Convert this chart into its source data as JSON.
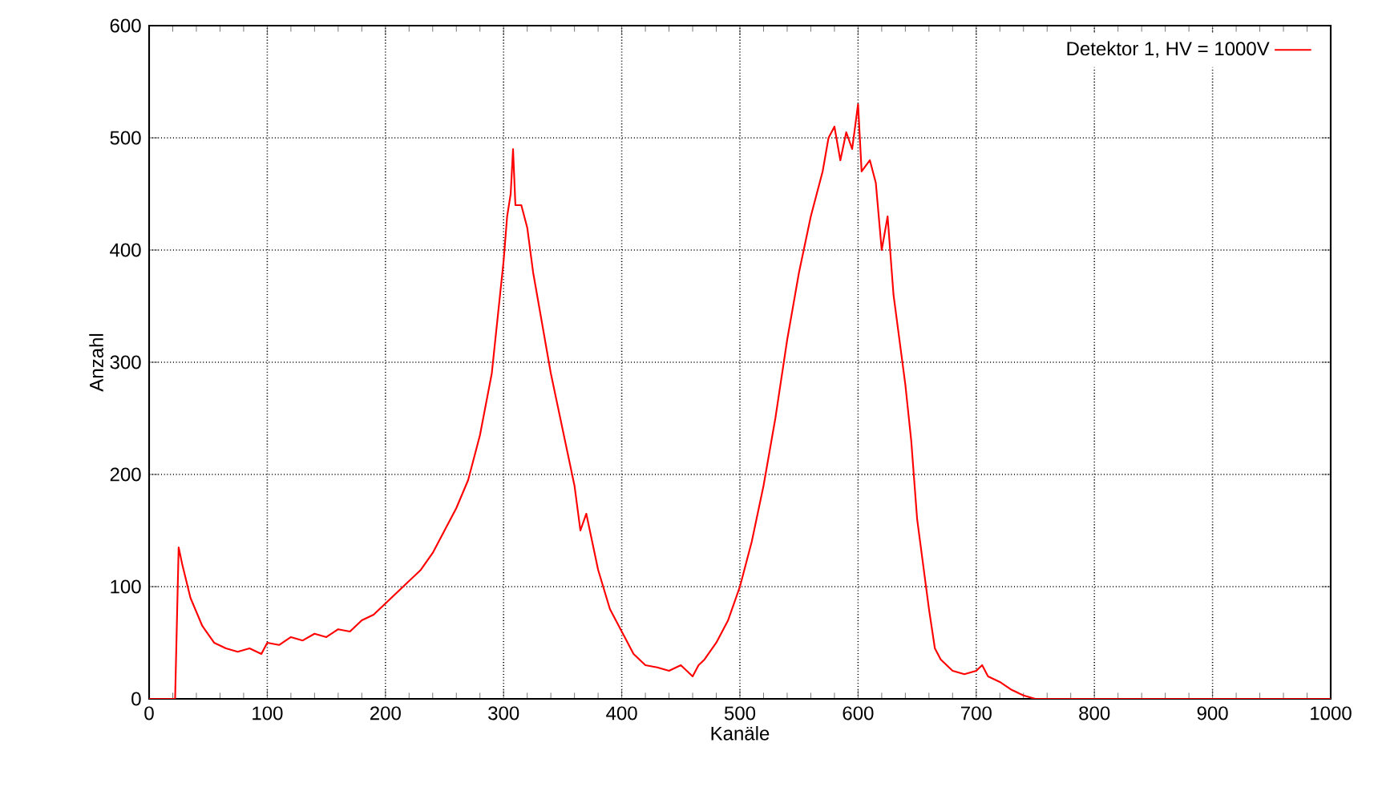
{
  "chart_data": {
    "type": "line",
    "xlabel": "Kanäle",
    "ylabel": "Anzahl",
    "xlim": [
      0,
      1000
    ],
    "ylim": [
      0,
      600
    ],
    "xticks": [
      0,
      100,
      200,
      300,
      400,
      500,
      600,
      700,
      800,
      900,
      1000
    ],
    "yticks": [
      0,
      100,
      200,
      300,
      400,
      500,
      600
    ],
    "grid": true,
    "legend": "top right",
    "marker": "none",
    "line_style": "solid",
    "series": [
      {
        "name": "Detektor 1, HV = 1000V",
        "color": "#ff0000",
        "x": [
          0,
          20,
          22,
          25,
          28,
          35,
          45,
          55,
          65,
          75,
          85,
          95,
          100,
          110,
          120,
          130,
          140,
          150,
          160,
          170,
          180,
          190,
          200,
          210,
          220,
          230,
          240,
          250,
          260,
          270,
          280,
          290,
          295,
          300,
          303,
          306,
          308,
          310,
          315,
          320,
          325,
          330,
          340,
          350,
          360,
          365,
          370,
          380,
          390,
          400,
          410,
          420,
          430,
          440,
          450,
          460,
          465,
          470,
          480,
          490,
          500,
          510,
          520,
          530,
          540,
          550,
          560,
          570,
          575,
          580,
          585,
          590,
          595,
          600,
          603,
          610,
          615,
          620,
          625,
          630,
          640,
          645,
          650,
          660,
          665,
          670,
          680,
          690,
          700,
          705,
          710,
          720,
          730,
          740,
          750,
          800,
          900,
          1000
        ],
        "values": [
          0,
          0,
          0,
          135,
          120,
          90,
          65,
          50,
          45,
          42,
          45,
          40,
          50,
          48,
          55,
          52,
          58,
          55,
          62,
          60,
          70,
          75,
          85,
          95,
          105,
          115,
          130,
          150,
          170,
          195,
          235,
          290,
          340,
          390,
          430,
          450,
          490,
          440,
          440,
          420,
          380,
          350,
          290,
          240,
          190,
          150,
          165,
          115,
          80,
          60,
          40,
          30,
          28,
          25,
          30,
          20,
          30,
          35,
          50,
          70,
          100,
          140,
          190,
          250,
          320,
          380,
          430,
          470,
          500,
          510,
          480,
          505,
          490,
          530,
          470,
          480,
          460,
          400,
          430,
          360,
          280,
          230,
          160,
          80,
          45,
          35,
          25,
          22,
          25,
          30,
          20,
          15,
          8,
          3,
          0,
          0,
          0,
          0
        ]
      }
    ]
  }
}
